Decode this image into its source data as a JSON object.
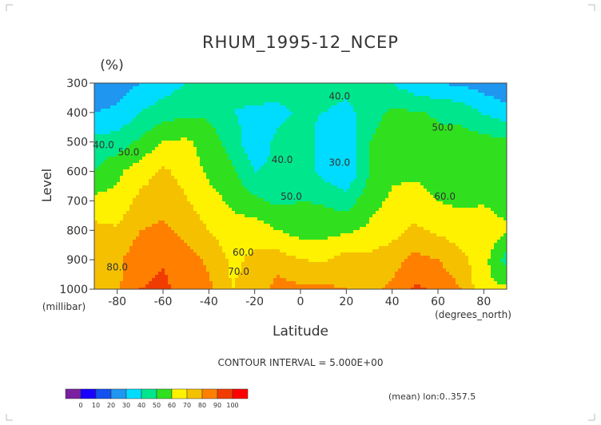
{
  "chart_data": {
    "type": "heatmap",
    "title": "RHUM_1995-12_NCEP",
    "units": "(%)",
    "xlabel": "Latitude",
    "ylabel": "Level",
    "x_units": "(degrees_north)",
    "y_units": "(millibar)",
    "xlim": [
      -90,
      90
    ],
    "ylim": [
      1000,
      300
    ],
    "x_ticks": [
      "-80",
      "-60",
      "-40",
      "-20",
      "0",
      "20",
      "40",
      "60",
      "80"
    ],
    "y_ticks": [
      "300",
      "400",
      "500",
      "600",
      "700",
      "800",
      "900",
      "1000"
    ],
    "x": [
      -90,
      -80,
      -70,
      -60,
      -50,
      -40,
      -30,
      -20,
      -10,
      0,
      10,
      20,
      30,
      40,
      50,
      60,
      70,
      80,
      90
    ],
    "levels": [
      300,
      400,
      500,
      600,
      700,
      800,
      900,
      1000
    ],
    "values": [
      [
        20,
        25,
        30,
        35,
        40,
        43,
        43,
        46,
        48,
        48,
        46,
        45,
        45,
        40,
        33,
        30,
        28,
        25,
        20
      ],
      [
        30,
        32,
        40,
        45,
        48,
        48,
        40,
        38,
        36,
        42,
        40,
        36,
        46,
        52,
        51,
        49,
        47,
        39,
        35
      ],
      [
        44,
        44,
        52,
        60,
        62,
        55,
        46,
        32,
        43,
        47,
        35,
        31,
        50,
        55,
        54,
        52,
        54,
        54,
        52
      ],
      [
        50,
        58,
        65,
        72,
        66,
        58,
        52,
        40,
        42,
        48,
        36,
        30,
        50,
        58,
        58,
        56,
        55,
        58,
        55
      ],
      [
        63,
        63,
        73,
        76,
        71,
        64,
        58,
        52,
        48,
        50,
        49,
        45,
        56,
        62,
        64,
        60,
        58,
        59,
        55
      ],
      [
        73,
        71,
        80,
        82,
        77,
        70,
        64,
        66,
        60,
        56,
        56,
        58,
        62,
        66,
        72,
        68,
        65,
        66,
        62
      ],
      [
        76,
        78,
        86,
        89,
        84,
        78,
        68,
        72,
        75,
        70,
        69,
        74,
        73,
        76,
        83,
        80,
        73,
        64,
        45
      ],
      [
        79,
        78,
        90,
        92,
        87,
        82,
        70,
        73,
        84,
        82,
        82,
        80,
        77,
        82,
        92,
        88,
        80,
        62,
        62
      ]
    ],
    "contour_interval": "CONTOUR INTERVAL = 5.000E+00",
    "contour_labels": [
      {
        "value": "40.0",
        "x": 17,
        "level": 345
      },
      {
        "value": "40.0",
        "x": -86,
        "level": 510
      },
      {
        "value": "50.0",
        "x": -75,
        "level": 535
      },
      {
        "value": "40.0",
        "x": -8,
        "level": 560
      },
      {
        "value": "30.0",
        "x": 17,
        "level": 570
      },
      {
        "value": "50.0",
        "x": 62,
        "level": 450
      },
      {
        "value": "50.0",
        "x": -4,
        "level": 685
      },
      {
        "value": "60.0",
        "x": 63,
        "level": 685
      },
      {
        "value": "60.0",
        "x": -25,
        "level": 875
      },
      {
        "value": "70.0",
        "x": -27,
        "level": 940
      },
      {
        "value": "80.0",
        "x": -80,
        "level": 925
      }
    ],
    "colorbar": {
      "ticks": [
        "0",
        "10",
        "20",
        "30",
        "40",
        "50",
        "60",
        "70",
        "80",
        "90",
        "100"
      ],
      "colors": [
        "#7a1fa0",
        "#1900ff",
        "#1550f0",
        "#1f96f0",
        "#00dcff",
        "#00e68c",
        "#30e01e",
        "#fff200",
        "#f5c000",
        "#ff7f00",
        "#f03c00",
        "#ff0000"
      ]
    },
    "footnote": "(mean) lon:0..357.5"
  }
}
